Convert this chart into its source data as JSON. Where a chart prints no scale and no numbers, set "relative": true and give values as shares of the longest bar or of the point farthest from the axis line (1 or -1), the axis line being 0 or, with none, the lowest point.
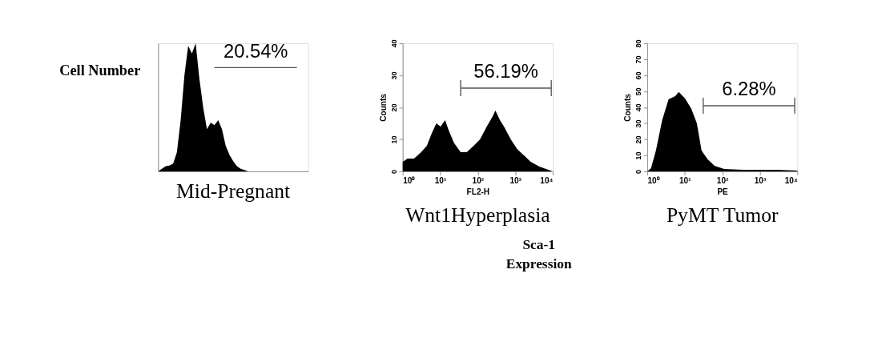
{
  "chart_data": [
    {
      "type": "area",
      "title": "Mid-Pregnant",
      "ylabel": "Cell Number",
      "relative": true,
      "tick_labels": false,
      "categories": [
        null,
        null,
        null,
        null,
        null,
        null,
        null,
        null,
        null,
        null,
        null,
        null,
        null,
        null,
        null,
        null,
        null,
        null,
        null,
        null,
        null,
        null,
        null,
        null,
        null,
        null,
        null,
        null,
        null,
        null,
        null,
        null,
        null,
        null,
        null,
        null,
        null,
        null,
        null,
        null,
        null
      ],
      "series": [
        {
          "color": "#000000",
          "values": [
            0,
            0.02,
            0.04,
            0.045,
            0.06,
            0.15,
            0.4,
            0.75,
            0.98,
            0.92,
            1.0,
            0.72,
            0.5,
            0.33,
            0.38,
            0.36,
            0.4,
            0.33,
            0.2,
            0.13,
            0.08,
            0.04,
            0.02,
            0.01,
            0,
            0,
            0,
            0,
            0,
            0,
            0,
            0,
            0,
            0,
            0,
            0,
            0,
            0,
            0,
            0,
            0
          ]
        },
        {
          "type": "line",
          "color": "#555555",
          "values": [
            null,
            null,
            null,
            null,
            null,
            null,
            null,
            null,
            null,
            null,
            null,
            null,
            null,
            null,
            null,
            0.81,
            0.81,
            0.81,
            0.81,
            0.81,
            0.81,
            0.81,
            0.81,
            0.81,
            0.81,
            0.81,
            0.81,
            0.81,
            0.81,
            0.81,
            0.81,
            0.81,
            0.81,
            0.81,
            0.81,
            0.81,
            0.81,
            0.81,
            null,
            null,
            null
          ]
        }
      ],
      "annotations": [
        "20.54%"
      ]
    },
    {
      "type": "area",
      "title": "Wnt1Hyperplasia",
      "xlabel": "FL2-H",
      "ylabel": "Counts",
      "log": "x",
      "xlim": [
        1,
        10000
      ],
      "ylim": [
        0,
        40
      ],
      "xticks": [
        {
          "value": 1,
          "label": "10⁰"
        },
        {
          "value": 10,
          "label": "10¹"
        },
        {
          "value": 100,
          "label": "10²"
        },
        {
          "value": 1000,
          "label": "10³"
        },
        {
          "value": 10000,
          "label": "10⁴"
        }
      ],
      "yticks": [
        0,
        10,
        20,
        30,
        40
      ],
      "x": [
        1,
        1.35,
        2.0,
        3.1,
        4.4,
        6.0,
        7.9,
        10.2,
        13.5,
        16.6,
        23,
        35,
        51,
        78,
        115,
        174,
        245,
        295,
        390,
        500,
        760,
        1120,
        1700,
        2570,
        4400,
        7600,
        9800
      ],
      "series": [
        {
          "color": "#000000",
          "values": [
            3,
            4,
            4,
            6,
            8,
            12,
            15,
            14,
            16,
            13,
            9,
            6,
            6,
            8,
            10,
            14,
            17,
            19,
            16,
            14,
            10,
            7,
            5,
            3,
            1.5,
            0.5,
            0
          ]
        },
        {
          "type": "line",
          "color": "#555555",
          "x": [
            35,
            9100
          ],
          "values": [
            26,
            26
          ],
          "errors": [
            2.5,
            2.5
          ]
        }
      ],
      "annotations": [
        "56.19%",
        "Sca-1\nExpression"
      ]
    },
    {
      "type": "area",
      "title": "PyMT Tumor",
      "xlabel": "PE",
      "ylabel": "Counts",
      "log": "x",
      "xlim": [
        1,
        10000
      ],
      "ylim": [
        0,
        80
      ],
      "xticks": [
        {
          "value": 1,
          "label": "10⁰"
        },
        {
          "value": 10,
          "label": "10¹"
        },
        {
          "value": 100,
          "label": "10²"
        },
        {
          "value": 1000,
          "label": "10³"
        },
        {
          "value": 10000,
          "label": "10⁴"
        }
      ],
      "yticks": [
        0,
        10,
        20,
        30,
        40,
        50,
        60,
        70,
        80
      ],
      "x": [
        1,
        1.26,
        1.7,
        2.5,
        3.7,
        5.6,
        6.9,
        10.2,
        15,
        21,
        28,
        41,
        62,
        112,
        370,
        2750,
        10000
      ],
      "series": [
        {
          "color": "#000000",
          "values": [
            0,
            2,
            13,
            32,
            45,
            47,
            49.6,
            45.5,
            39,
            30,
            13,
            7.5,
            3.5,
            1.5,
            1,
            1,
            0.5
          ]
        },
        {
          "type": "line",
          "color": "#555555",
          "x": [
            31,
            8500
          ],
          "values": [
            41,
            41
          ],
          "errors": [
            5,
            5
          ]
        }
      ],
      "annotations": [
        "6.28%"
      ]
    }
  ]
}
